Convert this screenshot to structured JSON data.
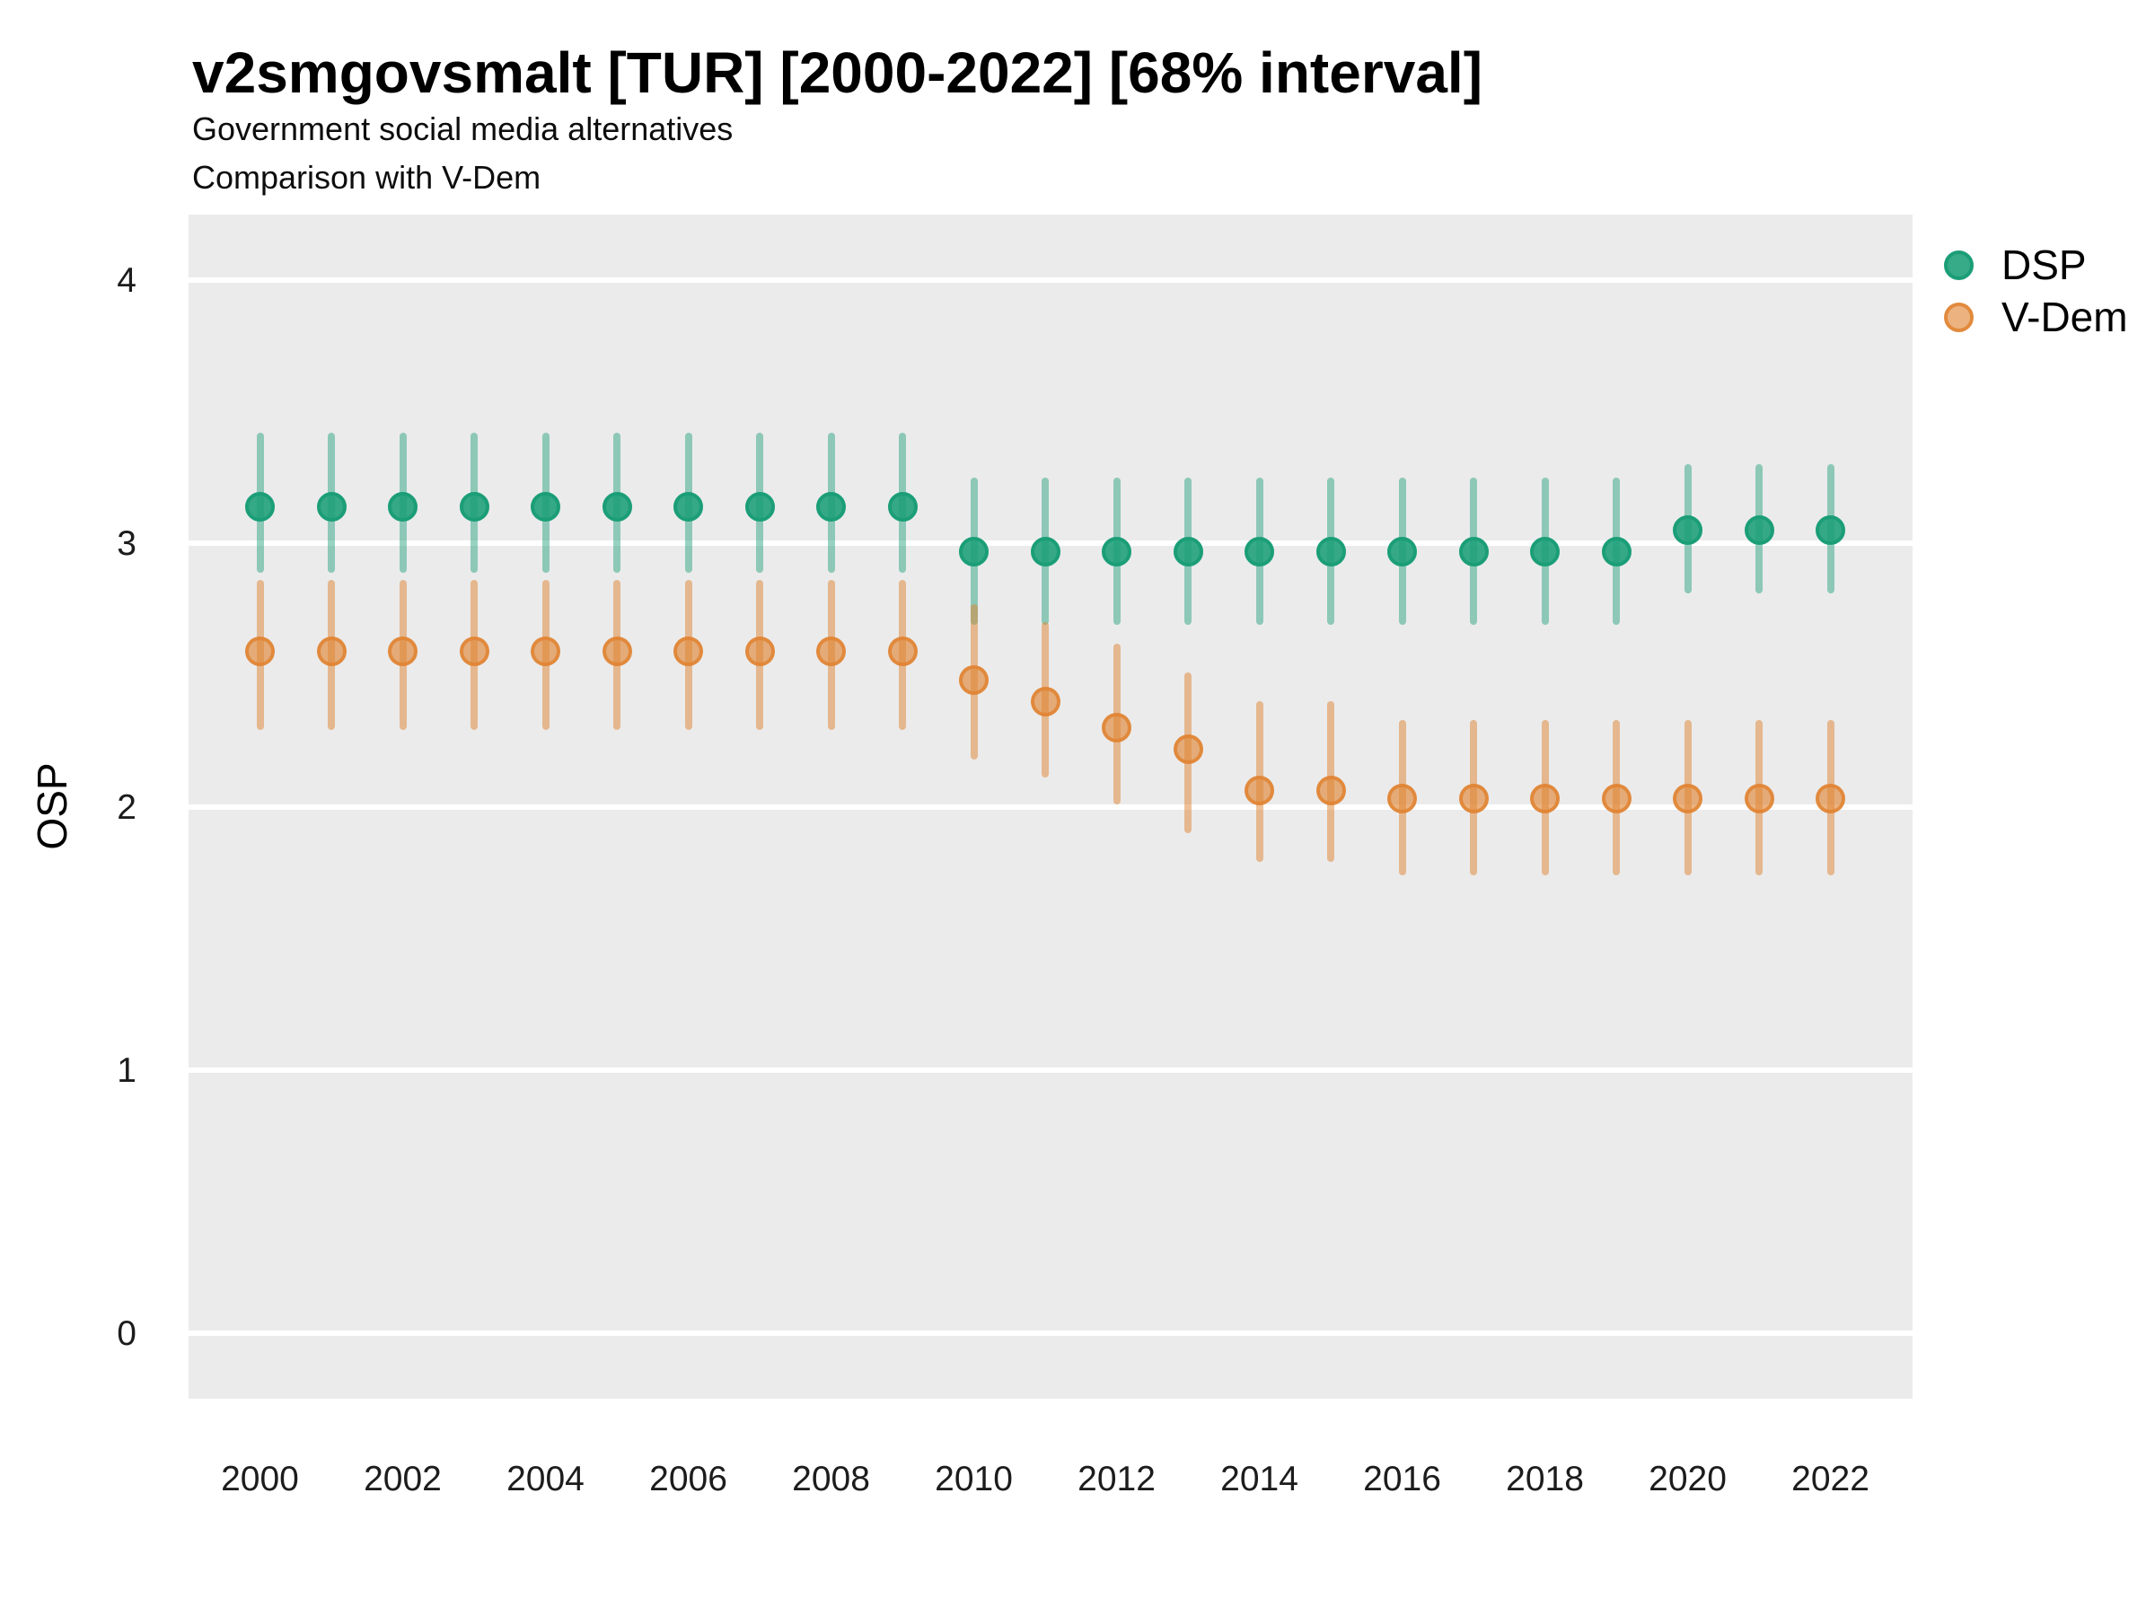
{
  "chart_data": {
    "type": "scatter",
    "variant": "pointrange",
    "title": "v2smgovsmalt [TUR] [2000-2022] [68% interval]",
    "subtitle_line1": "Government social media alternatives",
    "subtitle_line2": "Comparison with V-Dem",
    "xlabel": "",
    "ylabel": "OSP",
    "x_ticks": [
      2000,
      2002,
      2004,
      2006,
      2008,
      2010,
      2012,
      2014,
      2016,
      2018,
      2020,
      2022
    ],
    "y_ticks": [
      0,
      1,
      2,
      3,
      4
    ],
    "ylim": [
      -0.25,
      4.25
    ],
    "xlim": [
      1999.0,
      2023.15
    ],
    "grid": "horizontal-major-only",
    "panel_background": "#EBEBEB",
    "gridline_color": "#FFFFFF",
    "legend_position": "right-top",
    "series": [
      {
        "name": "DSP",
        "color": "#1b9e77",
        "points": [
          {
            "x": 2000,
            "y": 3.14,
            "lo": 2.89,
            "hi": 3.42
          },
          {
            "x": 2001,
            "y": 3.14,
            "lo": 2.89,
            "hi": 3.42
          },
          {
            "x": 2002,
            "y": 3.14,
            "lo": 2.89,
            "hi": 3.42
          },
          {
            "x": 2003,
            "y": 3.14,
            "lo": 2.89,
            "hi": 3.42
          },
          {
            "x": 2004,
            "y": 3.14,
            "lo": 2.89,
            "hi": 3.42
          },
          {
            "x": 2005,
            "y": 3.14,
            "lo": 2.89,
            "hi": 3.42
          },
          {
            "x": 2006,
            "y": 3.14,
            "lo": 2.89,
            "hi": 3.42
          },
          {
            "x": 2007,
            "y": 3.14,
            "lo": 2.89,
            "hi": 3.42
          },
          {
            "x": 2008,
            "y": 3.14,
            "lo": 2.89,
            "hi": 3.42
          },
          {
            "x": 2009,
            "y": 3.14,
            "lo": 2.89,
            "hi": 3.42
          },
          {
            "x": 2010,
            "y": 2.97,
            "lo": 2.69,
            "hi": 3.25
          },
          {
            "x": 2011,
            "y": 2.97,
            "lo": 2.69,
            "hi": 3.25
          },
          {
            "x": 2012,
            "y": 2.97,
            "lo": 2.69,
            "hi": 3.25
          },
          {
            "x": 2013,
            "y": 2.97,
            "lo": 2.69,
            "hi": 3.25
          },
          {
            "x": 2014,
            "y": 2.97,
            "lo": 2.69,
            "hi": 3.25
          },
          {
            "x": 2015,
            "y": 2.97,
            "lo": 2.69,
            "hi": 3.25
          },
          {
            "x": 2016,
            "y": 2.97,
            "lo": 2.69,
            "hi": 3.25
          },
          {
            "x": 2017,
            "y": 2.97,
            "lo": 2.69,
            "hi": 3.25
          },
          {
            "x": 2018,
            "y": 2.97,
            "lo": 2.69,
            "hi": 3.25
          },
          {
            "x": 2019,
            "y": 2.97,
            "lo": 2.69,
            "hi": 3.25
          },
          {
            "x": 2020,
            "y": 3.05,
            "lo": 2.81,
            "hi": 3.3
          },
          {
            "x": 2021,
            "y": 3.05,
            "lo": 2.81,
            "hi": 3.3
          },
          {
            "x": 2022,
            "y": 3.05,
            "lo": 2.81,
            "hi": 3.3
          }
        ]
      },
      {
        "name": "V-Dem",
        "color": "#e08432",
        "points": [
          {
            "x": 2000,
            "y": 2.59,
            "lo": 2.29,
            "hi": 2.86
          },
          {
            "x": 2001,
            "y": 2.59,
            "lo": 2.29,
            "hi": 2.86
          },
          {
            "x": 2002,
            "y": 2.59,
            "lo": 2.29,
            "hi": 2.86
          },
          {
            "x": 2003,
            "y": 2.59,
            "lo": 2.29,
            "hi": 2.86
          },
          {
            "x": 2004,
            "y": 2.59,
            "lo": 2.29,
            "hi": 2.86
          },
          {
            "x": 2005,
            "y": 2.59,
            "lo": 2.29,
            "hi": 2.86
          },
          {
            "x": 2006,
            "y": 2.59,
            "lo": 2.29,
            "hi": 2.86
          },
          {
            "x": 2007,
            "y": 2.59,
            "lo": 2.29,
            "hi": 2.86
          },
          {
            "x": 2008,
            "y": 2.59,
            "lo": 2.29,
            "hi": 2.86
          },
          {
            "x": 2009,
            "y": 2.59,
            "lo": 2.29,
            "hi": 2.86
          },
          {
            "x": 2010,
            "y": 2.48,
            "lo": 2.18,
            "hi": 2.77
          },
          {
            "x": 2011,
            "y": 2.4,
            "lo": 2.11,
            "hi": 2.7
          },
          {
            "x": 2012,
            "y": 2.3,
            "lo": 2.01,
            "hi": 2.62
          },
          {
            "x": 2013,
            "y": 2.22,
            "lo": 1.9,
            "hi": 2.51
          },
          {
            "x": 2014,
            "y": 2.06,
            "lo": 1.79,
            "hi": 2.4
          },
          {
            "x": 2015,
            "y": 2.06,
            "lo": 1.79,
            "hi": 2.4
          },
          {
            "x": 2016,
            "y": 2.03,
            "lo": 1.74,
            "hi": 2.33
          },
          {
            "x": 2017,
            "y": 2.03,
            "lo": 1.74,
            "hi": 2.33
          },
          {
            "x": 2018,
            "y": 2.03,
            "lo": 1.74,
            "hi": 2.33
          },
          {
            "x": 2019,
            "y": 2.03,
            "lo": 1.74,
            "hi": 2.33
          },
          {
            "x": 2020,
            "y": 2.03,
            "lo": 1.74,
            "hi": 2.33
          },
          {
            "x": 2021,
            "y": 2.03,
            "lo": 1.74,
            "hi": 2.33
          },
          {
            "x": 2022,
            "y": 2.03,
            "lo": 1.74,
            "hi": 2.33
          }
        ]
      }
    ],
    "legend": [
      {
        "label": "DSP"
      },
      {
        "label": "V-Dem"
      }
    ]
  }
}
